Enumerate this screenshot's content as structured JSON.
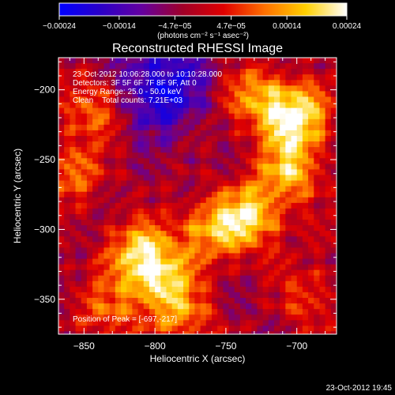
{
  "chart_data": {
    "type": "heatmap",
    "title": "Reconstructed RHESSI Image",
    "xlabel": "Heliocentric X (arcsec)",
    "ylabel": "Heliocentric Y (arcsec)",
    "xlim": [
      -868,
      -672
    ],
    "ylim": [
      -375,
      -177
    ],
    "x_ticks": [
      -850,
      -800,
      -750,
      -700
    ],
    "x_tick_labels": [
      "−850",
      "−800",
      "−750",
      "−700"
    ],
    "y_ticks": [
      -350,
      -300,
      -250,
      -200
    ],
    "y_tick_labels": [
      "−350",
      "−300",
      "−250",
      "−200"
    ],
    "colorbar": {
      "range": [
        -0.00024,
        0.00024
      ],
      "ticks": [
        -0.00024,
        -0.00014,
        -4.7e-05,
        4.7e-05,
        0.00014,
        0.00024
      ],
      "tick_labels": [
        "−0.00024",
        "−0.00014",
        "−4.7e−05",
        "4.7e−05",
        "0.00014",
        "0.00024"
      ],
      "unit_label": "(photons cm⁻² s⁻¹ asec⁻²)",
      "colors": [
        "#0000ff",
        "#2a00c8",
        "#6400a0",
        "#a00028",
        "#e00000",
        "#ff7000",
        "#ffd000",
        "#ffffff"
      ]
    },
    "annotations": {
      "line1": "23-Oct-2012 10:06:28.000 to 10:10:28.000",
      "line2": "Detectors: 3F 5F 6F 7F 8F 9F, Att 0",
      "line3": "Energy Range: 25.0 - 50.0 keV",
      "line4": "Clean    Total counts: 7.21E+03",
      "peak": "Position of Peak = [-697,-217]"
    },
    "sources": [
      {
        "x": -810,
        "y": -318,
        "value": 0.00022
      },
      {
        "x": -795,
        "y": -340,
        "value": 0.00018
      },
      {
        "x": -762,
        "y": -300,
        "value": 0.00016
      },
      {
        "x": -733,
        "y": -290,
        "value": 0.00021
      },
      {
        "x": -700,
        "y": -220,
        "value": 0.00024
      },
      {
        "x": -705,
        "y": -258,
        "value": 0.0002
      },
      {
        "x": -728,
        "y": -205,
        "value": 0.00016
      },
      {
        "x": -845,
        "y": -212,
        "value": 0.00014
      },
      {
        "x": -858,
        "y": -260,
        "value": 0.00012
      },
      {
        "x": -835,
        "y": -358,
        "value": 0.00011
      },
      {
        "x": -780,
        "y": -365,
        "value": 0.00012
      },
      {
        "x": -690,
        "y": -350,
        "value": 0.0001
      }
    ],
    "negative_region": {
      "x": -795,
      "y": -200,
      "value": -0.00018
    }
  },
  "footer": {
    "date": "23-Oct-2012 19:45"
  }
}
